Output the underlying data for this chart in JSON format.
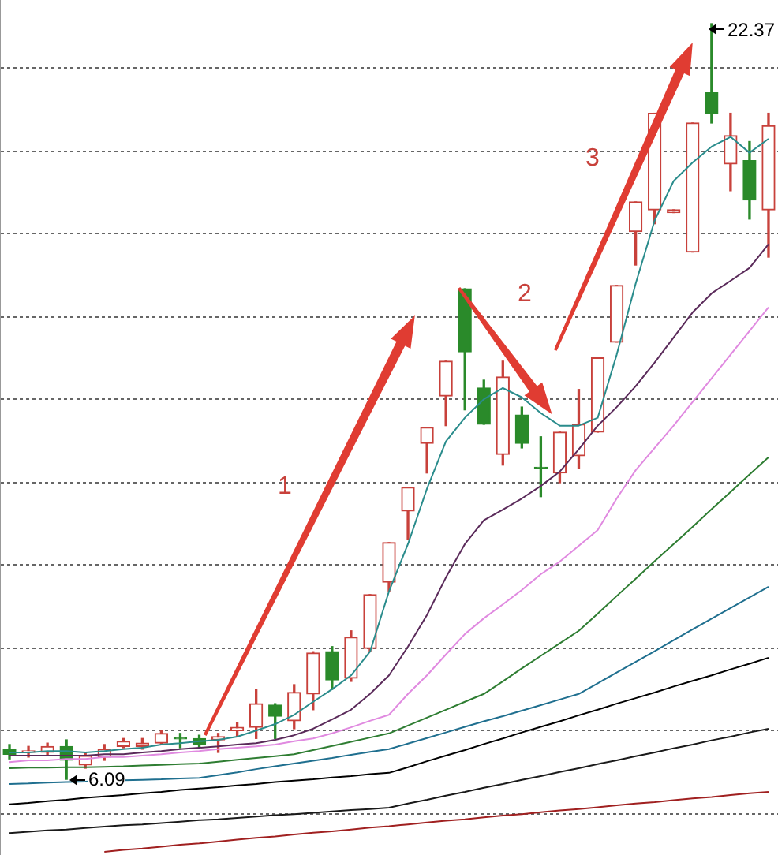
{
  "chart_data": {
    "type": "candlestick",
    "categories": [
      null,
      null,
      null,
      null,
      null,
      null,
      null,
      null,
      null,
      null,
      null,
      null,
      null,
      null,
      null,
      null,
      null,
      null,
      null,
      null,
      null,
      null,
      null,
      null,
      null,
      null,
      null,
      null,
      null,
      null,
      null,
      null,
      null,
      null,
      null,
      null,
      null,
      null,
      null,
      null,
      null
    ],
    "ohlc": [
      [
        6.74,
        6.84,
        6.53,
        6.63
      ],
      [
        6.67,
        6.8,
        6.57,
        6.68
      ],
      [
        6.67,
        6.87,
        6.6,
        6.8
      ],
      [
        6.8,
        6.94,
        6.09,
        6.5
      ],
      [
        6.4,
        6.67,
        6.33,
        6.6
      ],
      [
        6.57,
        6.84,
        6.5,
        6.74
      ],
      [
        6.8,
        6.97,
        6.77,
        6.91
      ],
      [
        6.8,
        6.97,
        6.74,
        6.87
      ],
      [
        6.87,
        7.14,
        6.84,
        7.08
      ],
      [
        6.97,
        7.08,
        6.77,
        6.96
      ],
      [
        6.97,
        7.04,
        6.77,
        6.84
      ],
      [
        6.94,
        7.08,
        6.67,
        7.01
      ],
      [
        7.14,
        7.31,
        7.01,
        7.21
      ],
      [
        7.21,
        8.03,
        6.97,
        7.72
      ],
      [
        7.69,
        7.72,
        6.97,
        7.45
      ],
      [
        7.35,
        8.13,
        7.18,
        7.96
      ],
      [
        7.93,
        8.84,
        7.59,
        8.81
      ],
      [
        8.84,
        8.95,
        8.03,
        8.23
      ],
      [
        8.27,
        9.29,
        8.2,
        9.15
      ],
      [
        8.91,
        10.07,
        8.84,
        10.07
      ],
      [
        10.34,
        11.19,
        10.14,
        11.19
      ],
      [
        11.87,
        12.38,
        11.26,
        12.38
      ],
      [
        13.33,
        13.67,
        12.69,
        13.67
      ],
      [
        14.35,
        15.1,
        13.71,
        15.1
      ],
      [
        16.66,
        16.66,
        14.05,
        15.3
      ],
      [
        14.52,
        14.69,
        13.74,
        13.74
      ],
      [
        13.09,
        15.1,
        12.86,
        14.76
      ],
      [
        13.94,
        14.11,
        13.23,
        13.33
      ],
      [
        12.79,
        13.47,
        12.18,
        12.78
      ],
      [
        12.69,
        13.57,
        12.48,
        13.57
      ],
      [
        13.06,
        14.49,
        12.79,
        13.74
      ],
      [
        13.57,
        15.17,
        13.57,
        15.17
      ],
      [
        15.51,
        16.73,
        15.51,
        16.73
      ],
      [
        17.89,
        18.53,
        17.17,
        18.53
      ],
      [
        18.36,
        20.44,
        18.06,
        20.44
      ],
      [
        18.3,
        18.36,
        18.3,
        18.36
      ],
      [
        17.45,
        20.23,
        17.45,
        20.23
      ],
      [
        20.88,
        22.37,
        20.23,
        20.44
      ],
      [
        19.35,
        20.44,
        18.77,
        19.96
      ],
      [
        19.42,
        19.83,
        18.16,
        18.57
      ],
      [
        18.36,
        20.44,
        17.34,
        20.17
      ]
    ],
    "series": [
      {
        "type": "line",
        "color": "#2a8c8c",
        "values": [
          6.67,
          6.67,
          6.7,
          6.7,
          6.67,
          6.7,
          6.74,
          6.77,
          6.84,
          6.87,
          6.91,
          6.94,
          7.01,
          7.14,
          7.28,
          7.48,
          7.76,
          8.03,
          8.33,
          8.84,
          10.14,
          11.16,
          12.35,
          13.37,
          13.88,
          14.28,
          14.52,
          14.32,
          13.98,
          13.71,
          13.71,
          13.88,
          15.24,
          16.77,
          18.13,
          18.98,
          19.38,
          19.72,
          19.93,
          19.59,
          19.89
        ]
      },
      {
        "type": "line",
        "color": "#5a2a5a",
        "values": [
          6.6,
          6.6,
          6.6,
          6.6,
          6.6,
          6.63,
          6.63,
          6.67,
          6.7,
          6.74,
          6.77,
          6.8,
          6.84,
          6.87,
          6.94,
          7.04,
          7.18,
          7.38,
          7.59,
          7.93,
          8.33,
          8.95,
          9.63,
          10.44,
          11.16,
          11.67,
          11.9,
          12.14,
          12.41,
          12.72,
          13.2,
          13.71,
          14.11,
          14.56,
          15.07,
          15.61,
          16.15,
          16.56,
          16.83,
          17.11,
          17.62
        ]
      },
      {
        "type": "line",
        "color": "#e08ae0",
        "values": [
          6.46,
          6.5,
          6.5,
          6.53,
          6.53,
          6.57,
          6.57,
          6.6,
          6.63,
          6.67,
          6.7,
          6.74,
          6.77,
          6.8,
          6.84,
          6.91,
          6.97,
          7.08,
          7.21,
          7.35,
          7.48,
          7.93,
          8.33,
          8.78,
          9.22,
          9.56,
          9.86,
          10.17,
          10.51,
          10.78,
          11.12,
          11.46,
          12.14,
          12.75,
          13.23,
          13.71,
          14.22,
          14.73,
          15.24,
          15.75,
          16.26
        ]
      },
      {
        "type": "line",
        "color": "#2e7d32",
        "values": [
          6.33,
          6.34,
          6.34,
          6.35,
          6.35,
          6.36,
          6.37,
          6.39,
          6.4,
          6.42,
          6.43,
          6.47,
          6.51,
          6.55,
          6.59,
          6.63,
          6.72,
          6.81,
          6.9,
          6.99,
          7.08,
          7.25,
          7.42,
          7.59,
          7.76,
          7.93,
          8.2,
          8.48,
          8.75,
          9.02,
          9.29,
          9.66,
          10.04,
          10.41,
          10.79,
          11.16,
          11.53,
          11.91,
          12.28,
          12.66,
          13.03
        ]
      },
      {
        "type": "line",
        "color": "#1f6f8f",
        "values": [
          5.99,
          6.0,
          6.02,
          6.03,
          6.04,
          6.06,
          6.07,
          6.08,
          6.09,
          6.11,
          6.12,
          6.18,
          6.24,
          6.31,
          6.37,
          6.43,
          6.49,
          6.55,
          6.62,
          6.68,
          6.74,
          6.86,
          6.98,
          7.1,
          7.22,
          7.34,
          7.45,
          7.57,
          7.69,
          7.81,
          7.93,
          8.16,
          8.39,
          8.62,
          8.85,
          9.09,
          9.32,
          9.55,
          9.78,
          10.01,
          10.24
        ]
      },
      {
        "type": "line",
        "color": "#000000",
        "values": [
          5.55,
          5.58,
          5.62,
          5.65,
          5.69,
          5.72,
          5.75,
          5.79,
          5.82,
          5.86,
          5.89,
          5.92,
          5.96,
          5.99,
          6.03,
          6.06,
          6.09,
          6.13,
          6.16,
          6.2,
          6.23,
          6.35,
          6.48,
          6.6,
          6.72,
          6.85,
          6.97,
          7.1,
          7.22,
          7.34,
          7.47,
          7.59,
          7.72,
          7.84,
          7.96,
          8.09,
          8.21,
          8.33,
          8.46,
          8.58,
          8.71
        ]
      },
      {
        "type": "line",
        "color": "#1a1a1a",
        "values": [
          4.93,
          4.96,
          4.99,
          5.01,
          5.04,
          5.07,
          5.1,
          5.12,
          5.15,
          5.18,
          5.21,
          5.23,
          5.26,
          5.29,
          5.32,
          5.34,
          5.37,
          5.4,
          5.43,
          5.45,
          5.48,
          5.57,
          5.65,
          5.74,
          5.82,
          5.91,
          5.99,
          6.08,
          6.16,
          6.25,
          6.33,
          6.42,
          6.5,
          6.59,
          6.67,
          6.76,
          6.84,
          6.93,
          7.01,
          7.1,
          7.18
        ]
      },
      {
        "type": "line",
        "color": "#a02020",
        "values": [
          null,
          null,
          null,
          null,
          null,
          4.53,
          4.57,
          4.6,
          4.64,
          4.68,
          4.71,
          4.75,
          4.79,
          4.83,
          4.86,
          4.9,
          4.94,
          4.97,
          5.01,
          5.05,
          5.08,
          5.12,
          5.16,
          5.2,
          5.23,
          5.27,
          5.31,
          5.34,
          5.38,
          5.42,
          5.45,
          5.49,
          5.53,
          5.57,
          5.6,
          5.64,
          5.68,
          5.71,
          5.75,
          5.79,
          5.82
        ]
      }
    ],
    "ylim": [
      4.46,
      22.88
    ],
    "yticks": [
      {
        "value": 5.34,
        "label": null
      },
      {
        "value": 7.14,
        "label": null
      },
      {
        "value": 8.91,
        "label": null
      },
      {
        "value": 10.71,
        "label": null
      },
      {
        "value": 12.48,
        "label": null
      },
      {
        "value": 14.28,
        "label": null
      },
      {
        "value": 16.05,
        "label": null
      },
      {
        "value": 17.85,
        "label": null
      },
      {
        "value": 19.62,
        "label": null
      },
      {
        "value": 21.42,
        "label": null
      }
    ],
    "grid": "y",
    "tick_labels": false,
    "legend": false,
    "annotations": [
      "22.37",
      "6.09",
      "1",
      "2",
      "3"
    ]
  }
}
